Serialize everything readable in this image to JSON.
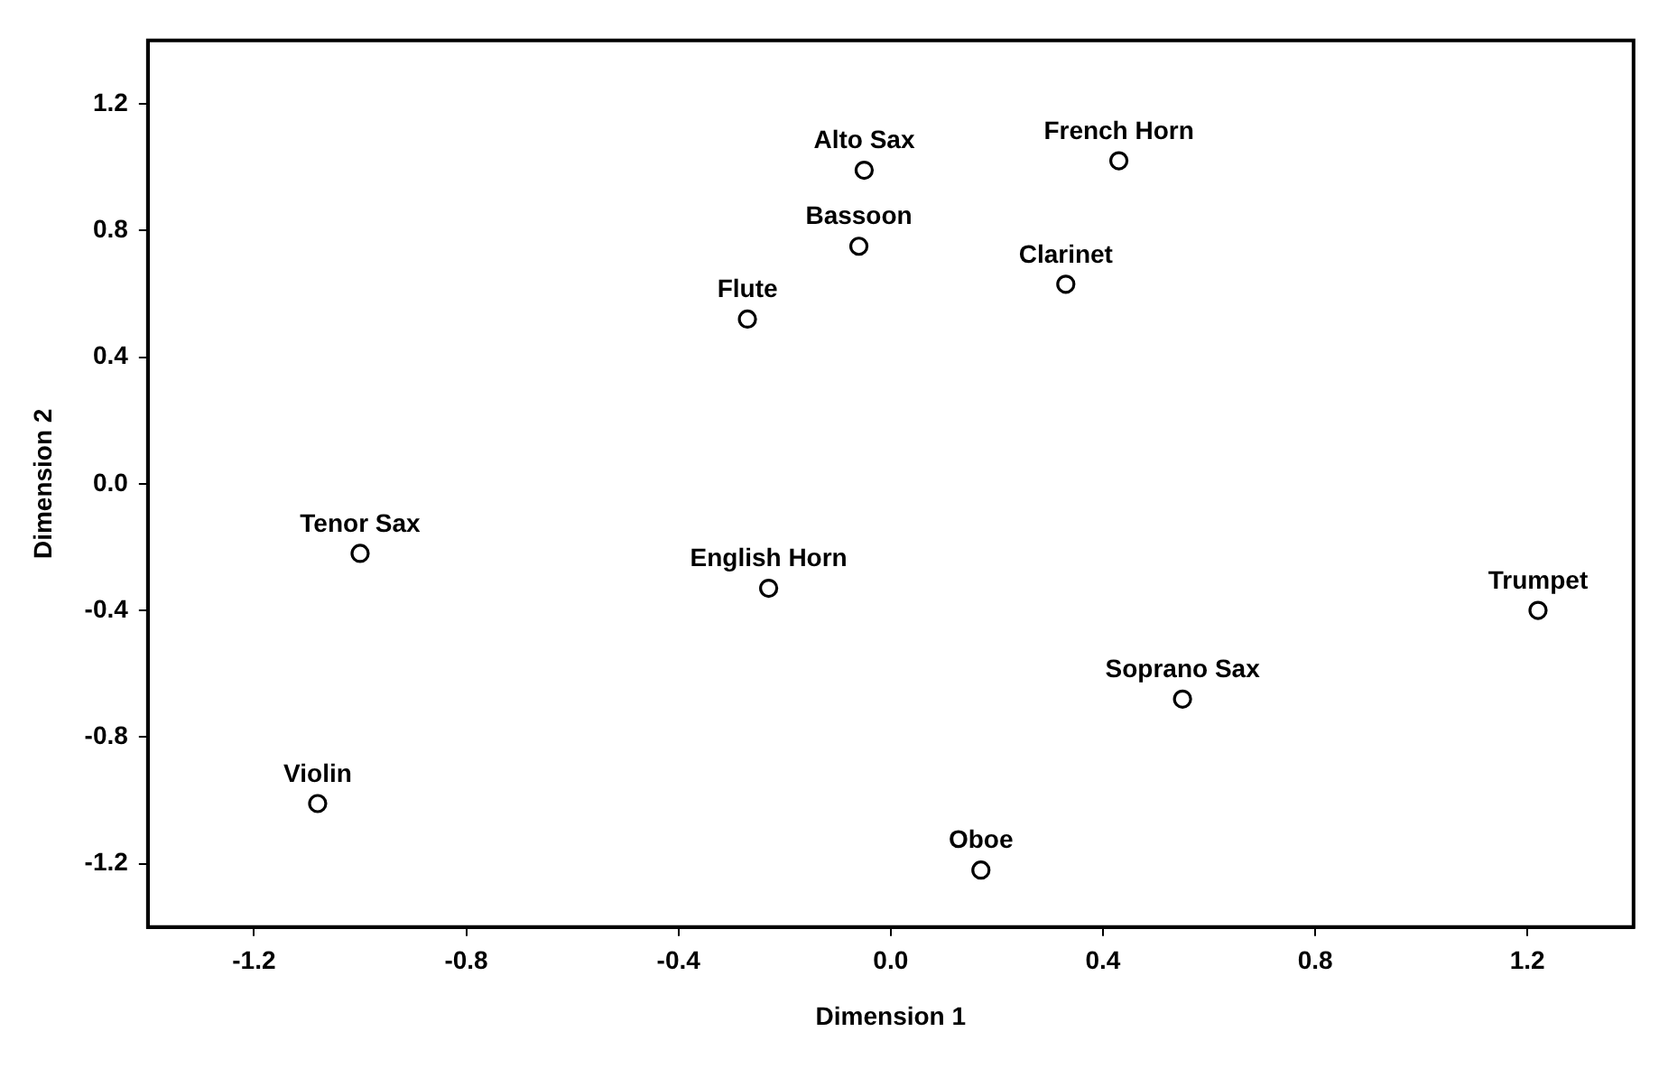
{
  "chart_data": {
    "type": "scatter",
    "xlabel": "Dimension 1",
    "ylabel": "Dimension 2",
    "x": [
      -0.05,
      0.43,
      -0.06,
      0.33,
      -0.27,
      -1.0,
      -0.23,
      1.22,
      0.55,
      -1.08,
      0.17
    ],
    "series": [
      {
        "color": "#000000",
        "values": [
          0.99,
          1.02,
          0.75,
          0.63,
          0.52,
          -0.22,
          -0.33,
          -0.4,
          -0.68,
          -1.01,
          -1.22
        ]
      }
    ],
    "annotations": [
      {
        "text": "Alto Sax",
        "x": -0.05,
        "y": 0.99
      },
      {
        "text": "French Horn",
        "x": 0.43,
        "y": 1.02
      },
      {
        "text": "Bassoon",
        "x": -0.06,
        "y": 0.75
      },
      {
        "text": "Clarinet",
        "x": 0.33,
        "y": 0.63
      },
      {
        "text": "Flute",
        "x": -0.27,
        "y": 0.52
      },
      {
        "text": "Tenor Sax",
        "x": -1.0,
        "y": -0.22
      },
      {
        "text": "English Horn",
        "x": -0.23,
        "y": -0.33
      },
      {
        "text": "Trumpet",
        "x": 1.22,
        "y": -0.4
      },
      {
        "text": "Soprano Sax",
        "x": 0.55,
        "y": -0.68
      },
      {
        "text": "Violin",
        "x": -1.08,
        "y": -1.01
      },
      {
        "text": "Oboe",
        "x": 0.17,
        "y": -1.22
      }
    ],
    "xlim": [
      -1.4,
      1.4
    ],
    "ylim": [
      -1.4,
      1.4
    ],
    "xticks": [
      {
        "value": -1.2,
        "label": "-1.2"
      },
      {
        "value": -0.8,
        "label": "-0.8"
      },
      {
        "value": -0.4,
        "label": "-0.4"
      },
      {
        "value": 0,
        "label": "0.0"
      },
      {
        "value": 0.4,
        "label": "0.4"
      },
      {
        "value": 0.8,
        "label": "0.8"
      },
      {
        "value": 1.2,
        "label": "1.2"
      }
    ],
    "yticks": [
      {
        "value": -1.2,
        "label": "-1.2"
      },
      {
        "value": -0.8,
        "label": "-0.8"
      },
      {
        "value": -0.4,
        "label": "-0.4"
      },
      {
        "value": 0,
        "label": "0.0"
      },
      {
        "value": 0.4,
        "label": "0.4"
      },
      {
        "value": 0.8,
        "label": "0.8"
      },
      {
        "value": 1.2,
        "label": "1.2"
      }
    ],
    "grid": false,
    "legend": false,
    "marker": "circle"
  }
}
